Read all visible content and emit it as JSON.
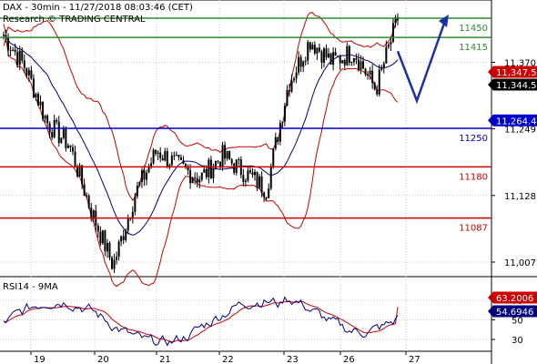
{
  "header": {
    "line1": "DAX - 30min - 11/27/2018 08:03:46 (CET)",
    "line2": "Research © TRADING CENTRAL"
  },
  "chart_data": [
    {
      "type": "candlestick",
      "title": "DAX - 30min - 11/27/2018 08:03:46 (CET)",
      "ylim": [
        10970,
        11480
      ],
      "x_tick_labels": [
        "19",
        "20",
        "21",
        "22",
        "23",
        "26",
        "27"
      ],
      "y_tick_labels": [
        11370,
        11249,
        11128,
        11007
      ],
      "levels": [
        {
          "label": "11450",
          "value": 11450,
          "color": "#2e8b2e"
        },
        {
          "label": "11415",
          "value": 11415,
          "color": "#2e8b2e"
        },
        {
          "label": "11250",
          "value": 11250,
          "color": "#0000cc"
        },
        {
          "label": "11180",
          "value": 11180,
          "color": "#cc0000"
        },
        {
          "label": "11087",
          "value": 11087,
          "color": "#cc0000"
        }
      ],
      "price_tags": [
        {
          "label": "11,347.5",
          "value": 11347.5,
          "color": "#cc0000"
        },
        {
          "label": "11,344.5",
          "value": 11344.5,
          "color": "#000000"
        },
        {
          "label": "11,264.4",
          "value": 11264.4,
          "color": "#0000cc"
        }
      ],
      "price_path": [
        11420,
        11360,
        11260,
        11220,
        11100,
        11000,
        11130,
        11210,
        11180,
        11160,
        11200,
        11170,
        11140,
        11330,
        11410,
        11370,
        11390,
        11320,
        11450
      ],
      "indicators": [
        "Bollinger Bands",
        "Moving Average"
      ]
    },
    {
      "type": "line",
      "title": "RSI14 - 9MA",
      "ylim": [
        20,
        82
      ],
      "y_tick_labels": [
        70,
        50,
        30
      ],
      "series": [
        {
          "name": "RSI14",
          "color": "#000080",
          "last": 54.6946
        },
        {
          "name": "9MA",
          "color": "#cc0000",
          "last": 63.2006
        }
      ],
      "value_tags": [
        {
          "label": "63.2006",
          "value": 63.2006,
          "color": "#cc0000"
        },
        {
          "label": "54.6946",
          "value": 54.6946,
          "color": "#000080"
        }
      ]
    }
  ]
}
